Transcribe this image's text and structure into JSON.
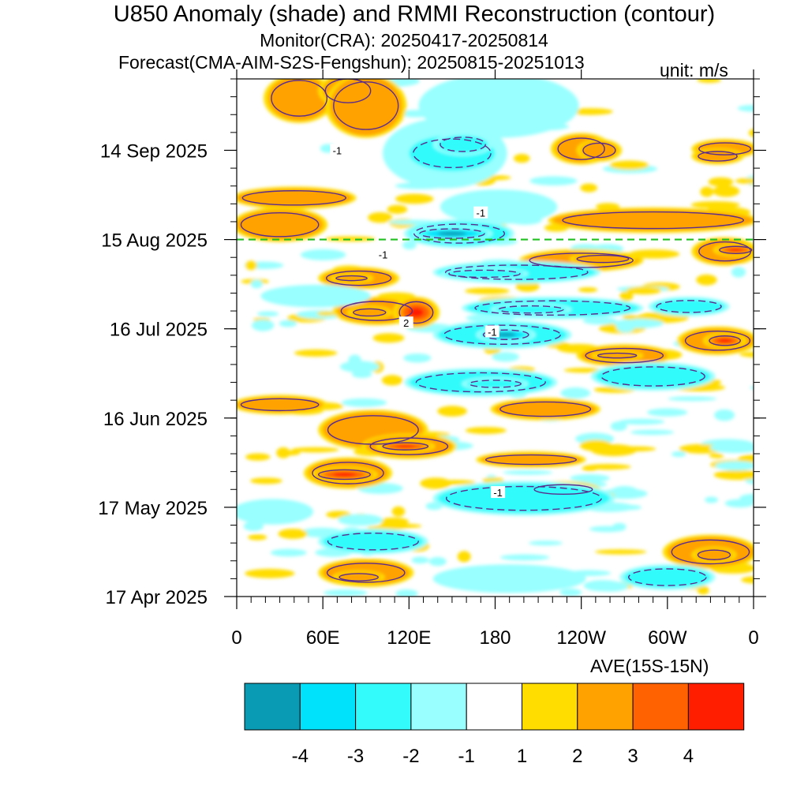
{
  "titles": {
    "main": "U850 Anomaly (shade) and RMMI Reconstruction (contour)",
    "monitor": "Monitor(CRA): 20250417-20250814",
    "forecast": "Forecast(CMA-AIM-S2S-Fengshun): 20250815-20251013",
    "unit": "unit: m/s",
    "average": "AVE(15S-15N)"
  },
  "chart_data": {
    "type": "heatmap",
    "title": "U850 Anomaly (shade) and RMMI Reconstruction (contour)",
    "x_axis": {
      "ticks": [
        "0",
        "60E",
        "120E",
        "180",
        "120W",
        "60W",
        "0"
      ],
      "tick_lon": [
        0,
        60,
        120,
        180,
        240,
        300,
        360
      ],
      "range": [
        0,
        360
      ]
    },
    "y_axis": {
      "ticks": [
        "17 Apr 2025",
        "17 May 2025",
        "16 Jun 2025",
        "16 Jul 2025",
        "15 Aug 2025",
        "14 Sep 2025"
      ],
      "tick_day": [
        0,
        30,
        60,
        90,
        120,
        150
      ],
      "range_dates": [
        "2025-04-17",
        "2025-10-13"
      ],
      "range_days": [
        0,
        174
      ]
    },
    "forecast_start": "2025-08-15",
    "levels": [
      -4,
      -3,
      -2,
      -1,
      1,
      2,
      3,
      4
    ],
    "colors": [
      "#0a9bb4",
      "#00e1fb",
      "#33fbfb",
      "#99ffff",
      "#ffffff",
      "#ffdd00",
      "#ffa200",
      "#ff6200",
      "#ff1e00"
    ],
    "colorbar_labels": [
      "-4",
      "-3",
      "-2",
      "-1",
      "1",
      "2",
      "3",
      "4"
    ],
    "forecast_line_color": "#20c020",
    "contour_color": "#5a2d8c",
    "contour_labels": [
      {
        "text": "-1",
        "lon": 70,
        "day": 150
      },
      {
        "text": "-1",
        "lon": 170,
        "day": 129
      },
      {
        "text": "-1",
        "lon": 102,
        "day": 115
      },
      {
        "text": "2",
        "lon": 118,
        "day": 92
      },
      {
        "text": "-1",
        "lon": 178,
        "day": 89
      },
      {
        "text": "-1",
        "lon": 182,
        "day": 35
      }
    ],
    "anomaly_regions": [
      {
        "lon": [
          70,
          125
        ],
        "day": [
          92,
          100
        ],
        "v": 2.5
      },
      {
        "lon": [
          80,
          105
        ],
        "day": [
          94,
          97
        ],
        "v": 3.5
      },
      {
        "lon": [
          112,
          138
        ],
        "day": [
          91,
          100
        ],
        "v": 4.5
      },
      {
        "lon": [
          60,
          110
        ],
        "day": [
          104,
          110
        ],
        "v": 2.5
      },
      {
        "lon": [
          68,
          92
        ],
        "day": [
          106,
          108
        ],
        "v": 3.5
      },
      {
        "lon": [
          200,
          280
        ],
        "day": [
          110,
          116
        ],
        "v": 2.5
      },
      {
        "lon": [
          235,
          275
        ],
        "day": [
          112,
          115
        ],
        "v": 3.5
      },
      {
        "lon": [
          310,
          360
        ],
        "day": [
          82,
          90
        ],
        "v": 2.5
      },
      {
        "lon": [
          328,
          352
        ],
        "day": [
          84,
          88
        ],
        "v": 4.5
      },
      {
        "lon": [
          240,
          300
        ],
        "day": [
          78,
          84
        ],
        "v": 2.5
      },
      {
        "lon": [
          250,
          280
        ],
        "day": [
          80,
          82
        ],
        "v": 3.5
      },
      {
        "lon": [
          0,
          60
        ],
        "day": [
          62,
          67
        ],
        "v": 2.5
      },
      {
        "lon": [
          60,
          130
        ],
        "day": [
          50,
          62
        ],
        "v": 2.5
      },
      {
        "lon": [
          90,
          150
        ],
        "day": [
          47,
          54
        ],
        "v": 3.5
      },
      {
        "lon": [
          100,
          135
        ],
        "day": [
          49,
          52
        ],
        "v": 4.5
      },
      {
        "lon": [
          50,
          105
        ],
        "day": [
          37,
          46
        ],
        "v": 2.5
      },
      {
        "lon": [
          55,
          95
        ],
        "day": [
          39,
          43
        ],
        "v": 4.5
      },
      {
        "lon": [
          60,
          120
        ],
        "day": [
          4,
          12
        ],
        "v": 2.5
      },
      {
        "lon": [
          70,
          100
        ],
        "day": [
          5,
          8
        ],
        "v": 3.5
      },
      {
        "lon": [
          180,
          250
        ],
        "day": [
          60,
          66
        ],
        "v": 2.5
      },
      {
        "lon": [
          170,
          240
        ],
        "day": [
          44,
          48
        ],
        "v": 2.5
      },
      {
        "lon": [
          205,
          250
        ],
        "day": [
          34,
          38
        ],
        "v": 2.5
      },
      {
        "lon": [
          300,
          360
        ],
        "day": [
          10,
          20
        ],
        "v": 2.5
      },
      {
        "lon": [
          320,
          345
        ],
        "day": [
          12,
          16
        ],
        "v": 3.5
      },
      {
        "lon": [
          320,
          360
        ],
        "day": [
          112,
          120
        ],
        "v": 2.5
      },
      {
        "lon": [
          335,
          360
        ],
        "day": [
          115,
          118
        ],
        "v": 4.5
      },
      {
        "lon": [
          0,
          60
        ],
        "day": [
          120,
          130
        ],
        "v": 2.5
      },
      {
        "lon": [
          220,
          360
        ],
        "day": [
          123,
          130
        ],
        "v": 2.5
      },
      {
        "lon": [
          0,
          80
        ],
        "day": [
          131,
          137
        ],
        "v": 2.5
      },
      {
        "lon": [
          222,
          258
        ],
        "day": [
          146,
          155
        ],
        "v": 2.5
      },
      {
        "lon": [
          320,
          360
        ],
        "day": [
          148,
          153
        ],
        "v": 2.5
      },
      {
        "lon": [
          22,
          65
        ],
        "day": [
          160,
          175
        ],
        "v": 2.5
      },
      {
        "lon": [
          60,
          95
        ],
        "day": [
          165,
          175
        ],
        "v": 2.5
      },
      {
        "lon": [
          140,
          250
        ],
        "day": [
          106,
          112
        ],
        "v": -2.5
      },
      {
        "lon": [
          145,
          200
        ],
        "day": [
          107,
          110
        ],
        "v": -3.5
      },
      {
        "lon": [
          160,
          280
        ],
        "day": [
          94,
          100
        ],
        "v": -2.5
      },
      {
        "lon": [
          180,
          230
        ],
        "day": [
          95,
          98
        ],
        "v": -3.5
      },
      {
        "lon": [
          140,
          230
        ],
        "day": [
          84,
          92
        ],
        "v": -2.5
      },
      {
        "lon": [
          170,
          205
        ],
        "day": [
          86,
          90
        ],
        "v": -4.5
      },
      {
        "lon": [
          290,
          340
        ],
        "day": [
          95,
          100
        ],
        "v": -2.5
      },
      {
        "lon": [
          20,
          90
        ],
        "day": [
          98,
          104
        ],
        "v": -1.5
      },
      {
        "lon": [
          120,
          220
        ],
        "day": [
          68,
          76
        ],
        "v": -2.5
      },
      {
        "lon": [
          160,
          200
        ],
        "day": [
          70,
          73
        ],
        "v": -3.5
      },
      {
        "lon": [
          250,
          330
        ],
        "day": [
          70,
          78
        ],
        "v": -2.5
      },
      {
        "lon": [
          140,
          260
        ],
        "day": [
          28,
          38
        ],
        "v": -2.5
      },
      {
        "lon": [
          0,
          50
        ],
        "day": [
          25,
          32
        ],
        "v": -1.5
      },
      {
        "lon": [
          60,
          130
        ],
        "day": [
          15,
          22
        ],
        "v": -2.5
      },
      {
        "lon": [
          140,
          240
        ],
        "day": [
          2,
          10
        ],
        "v": -1.5
      },
      {
        "lon": [
          270,
          330
        ],
        "day": [
          3,
          10
        ],
        "v": -2.5
      },
      {
        "lon": [
          120,
          190
        ],
        "day": [
          118,
          126
        ],
        "v": -2.5
      },
      {
        "lon": [
          125,
          175
        ],
        "day": [
          120,
          124
        ],
        "v": -4.5
      },
      {
        "lon": [
          145,
          220
        ],
        "day": [
          126,
          136
        ],
        "v": -1.5
      },
      {
        "lon": [
          105,
          185
        ],
        "day": [
          138,
          160
        ],
        "v": -1.5
      },
      {
        "lon": [
          120,
          180
        ],
        "day": [
          143,
          155
        ],
        "v": -2.5
      },
      {
        "lon": [
          140,
          175
        ],
        "day": [
          149,
          155
        ],
        "v": -3.5
      },
      {
        "lon": [
          130,
          235
        ],
        "day": [
          155,
          175
        ],
        "v": -1.5
      }
    ],
    "positive_forecast_blobs": [
      {
        "lon": [
          65,
          115
        ],
        "day": [
          155,
          175
        ],
        "v": 2.5
      },
      {
        "lon": [
          240,
          265
        ],
        "day": [
          147,
          153
        ],
        "v": 2.5
      },
      {
        "lon": [
          320,
          350
        ],
        "day": [
          146,
          150
        ],
        "v": 2.5
      }
    ]
  }
}
